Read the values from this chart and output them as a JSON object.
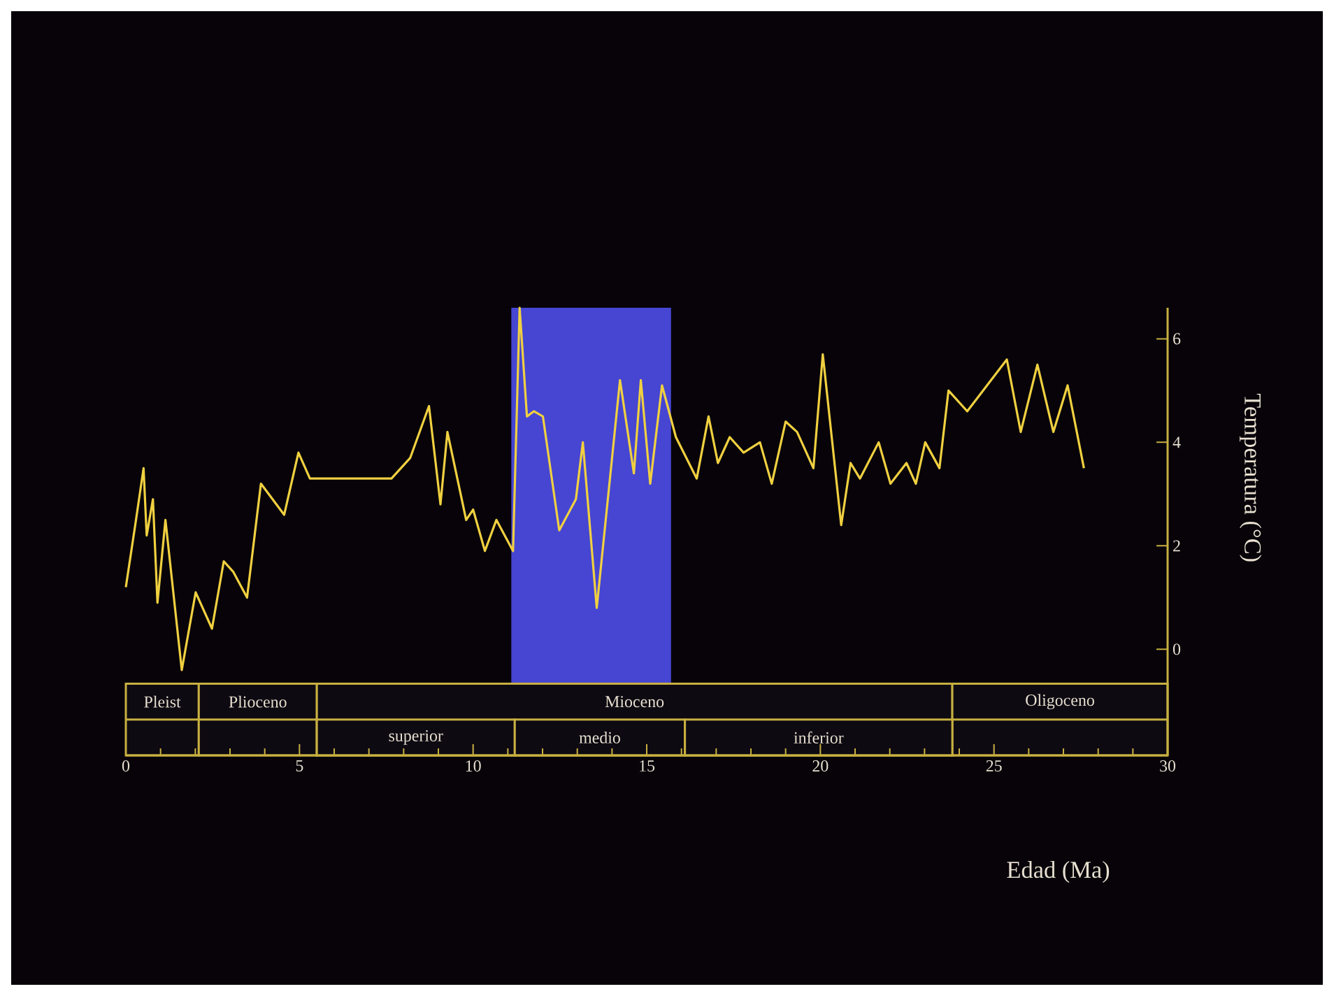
{
  "chart_data": {
    "type": "line",
    "xlabel": "Edad (Ma)",
    "ylabel": "Temperatura (°C)",
    "x": [
      0,
      0.27,
      0.51,
      0.6,
      0.78,
      0.91,
      1.14,
      1.61,
      2.01,
      2.48,
      2.82,
      3.09,
      3.49,
      3.89,
      4.56,
      4.97,
      5.3,
      7.65,
      8.19,
      8.73,
      9.06,
      9.26,
      9.8,
      10.0,
      10.34,
      10.67,
      11.15,
      11.34,
      11.55,
      11.75,
      12.01,
      12.48,
      12.96,
      13.16,
      13.56,
      14.23,
      14.63,
      14.83,
      15.1,
      15.44,
      15.84,
      16.44,
      16.78,
      17.05,
      17.39,
      17.79,
      18.26,
      18.6,
      19.0,
      19.33,
      19.8,
      20.07,
      20.6,
      20.87,
      21.14,
      21.68,
      22.02,
      22.48,
      22.75,
      23.02,
      23.43,
      23.69,
      24.23,
      25.37,
      25.77,
      26.25,
      26.71,
      27.12,
      27.59
    ],
    "series": [
      {
        "color": "#f0d040",
        "values": [
          1.2,
          2.4,
          3.5,
          2.2,
          2.9,
          0.9,
          2.5,
          -0.4,
          1.1,
          0.4,
          1.7,
          1.5,
          1.0,
          3.2,
          2.6,
          3.8,
          3.3,
          3.3,
          3.7,
          4.7,
          2.8,
          4.2,
          2.5,
          2.7,
          1.9,
          2.5,
          1.9,
          6.6,
          4.5,
          4.6,
          4.5,
          2.3,
          2.9,
          4.0,
          0.8,
          5.2,
          3.4,
          5.2,
          3.2,
          5.1,
          4.1,
          3.3,
          4.5,
          3.6,
          4.1,
          3.8,
          4.0,
          3.2,
          4.4,
          4.2,
          3.5,
          5.7,
          2.4,
          3.6,
          3.3,
          4.0,
          3.2,
          3.6,
          3.2,
          4.0,
          3.5,
          5.0,
          4.6,
          5.6,
          4.2,
          5.5,
          4.2,
          5.1,
          3.5
        ]
      }
    ],
    "xlim": [
      0,
      30
    ],
    "xticks": [
      0,
      5,
      10,
      15,
      20,
      25,
      30
    ],
    "ylim": [
      -2.05,
      6.6
    ],
    "yticks": [
      0,
      2,
      4,
      6
    ],
    "bands": [
      {
        "axis": "x",
        "from": 11.1,
        "to": 15.7,
        "color": "#4646d2"
      },
      {
        "axis": "x",
        "from": 0,
        "to": 2.1,
        "label": "Pleist"
      },
      {
        "axis": "x",
        "from": 2.1,
        "to": 5.5,
        "label": "Plioceno"
      },
      {
        "axis": "x",
        "from": 5.5,
        "to": 23.8,
        "label": "Mioceno"
      },
      {
        "axis": "x",
        "from": 23.8,
        "to": 30,
        "label": "Oligoceno"
      },
      {
        "axis": "x",
        "from": 5.5,
        "to": 11.2,
        "label": "superior"
      },
      {
        "axis": "x",
        "from": 11.2,
        "to": 16.1,
        "label": "medio"
      },
      {
        "axis": "x",
        "from": 16.1,
        "to": 23.8,
        "label": "inferior"
      }
    ]
  }
}
